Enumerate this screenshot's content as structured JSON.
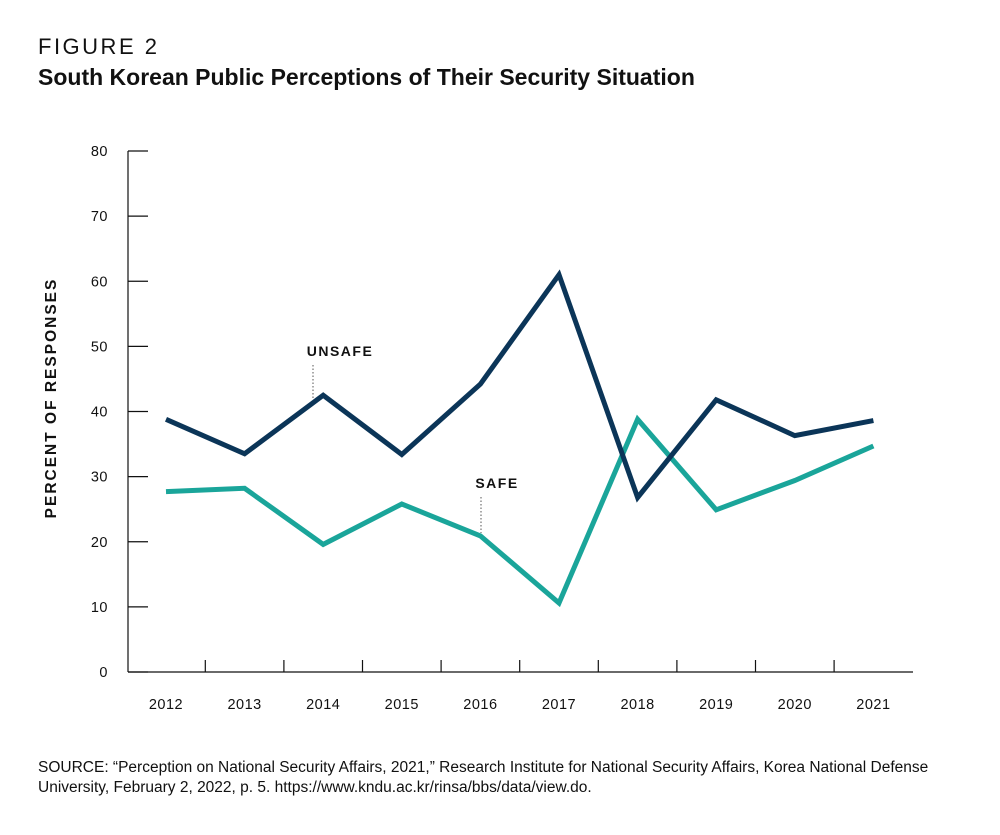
{
  "figure_label": "FIGURE 2",
  "title": "South Korean Public Perceptions of Their Security Situation",
  "source": "SOURCE: “Perception on National Security Affairs, 2021,” Research Institute for National Security Affairs, Korea National Defense University, February 2, 2022, p. 5. https://www.kndu.ac.kr/rinsa/bbs/data/view.do.",
  "colors": {
    "unsafe": "#0b3558",
    "safe": "#1aa59a"
  },
  "chart_data": {
    "type": "line",
    "title": "South Korean Public Perceptions of Their Security Situation",
    "xlabel": "",
    "ylabel": "PERCENT OF RESPONSES",
    "ylim": [
      0,
      80
    ],
    "yticks": [
      "0",
      "10",
      "20",
      "30",
      "40",
      "50",
      "60",
      "70",
      "80"
    ],
    "categories": [
      "2012",
      "2013",
      "2014",
      "2015",
      "2016",
      "2017",
      "2018",
      "2019",
      "2020",
      "2021"
    ],
    "grid": false,
    "series": [
      {
        "name": "UNSAFE",
        "values": [
          38.8,
          33.5,
          42.5,
          33.4,
          44.2,
          61.0,
          26.8,
          41.8,
          36.3,
          38.6
        ]
      },
      {
        "name": "SAFE",
        "values": [
          27.7,
          28.2,
          19.6,
          25.8,
          20.9,
          10.6,
          38.8,
          24.9,
          29.4,
          34.7
        ]
      }
    ]
  }
}
